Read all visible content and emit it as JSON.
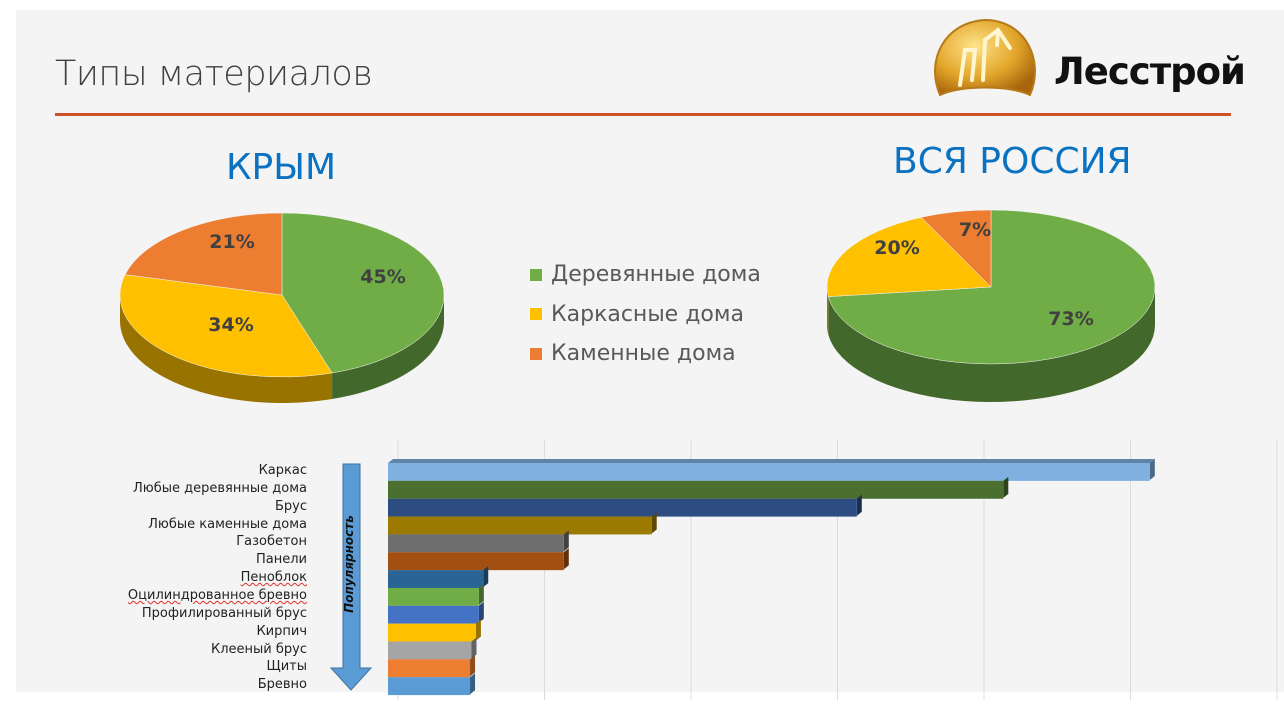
{
  "slide": {
    "title": "Типы материалов",
    "logo_text": "Лесстрой",
    "accent_color": "#d0502a"
  },
  "legend": [
    {
      "label": "Деревянные дома",
      "color": "#70ad47"
    },
    {
      "label": "Каркасные дома",
      "color": "#ffc000"
    },
    {
      "label": "Каменные дома",
      "color": "#ed7d31"
    }
  ],
  "chart_data": [
    {
      "type": "pie",
      "title": "КРЫМ",
      "style": "3d",
      "categories": [
        "Деревянные дома",
        "Каркасные дома",
        "Каменные дома"
      ],
      "values": [
        45,
        34,
        21
      ],
      "data_labels": [
        "45%",
        "34%",
        "21%"
      ],
      "colors": [
        "#70ad47",
        "#ffc000",
        "#ed7d31"
      ]
    },
    {
      "type": "pie",
      "title": "ВСЯ РОССИЯ",
      "style": "3d",
      "categories": [
        "Деревянные дома",
        "Каркасные дома",
        "Каменные дома"
      ],
      "values": [
        73,
        20,
        7
      ],
      "data_labels": [
        "73%",
        "20%",
        "7%"
      ],
      "colors": [
        "#70ad47",
        "#ffc000",
        "#ed7d31"
      ]
    },
    {
      "type": "bar",
      "orientation": "horizontal",
      "style": "3d",
      "ylabel": "Популярность",
      "grid": true,
      "categories": [
        "Каркас",
        "Любые деревянные дома",
        "Брус",
        "Любые каменные дома",
        "Газобетон",
        "Панели",
        "Пеноблок",
        "Оцилиндрованное бревно",
        "Профилированный брус",
        "Кирпич",
        "Клееный брус",
        "Щиты",
        "Бревно"
      ],
      "values": [
        5.2,
        4.2,
        3.2,
        1.8,
        1.2,
        1.2,
        0.65,
        0.62,
        0.62,
        0.6,
        0.57,
        0.56,
        0.56
      ],
      "xlim": [
        0,
        6
      ],
      "colors": [
        "#7fb0df",
        "#4a6f2e",
        "#2d4d82",
        "#9c7a00",
        "#6e6e6e",
        "#a44f12",
        "#2a6496",
        "#70ad47",
        "#4472c4",
        "#ffc000",
        "#a5a5a5",
        "#ed7d31",
        "#5b9bd5"
      ]
    }
  ]
}
